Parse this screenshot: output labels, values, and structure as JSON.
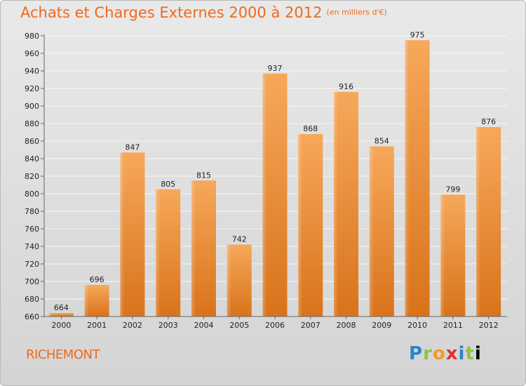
{
  "header": {
    "title": "Achats et Charges Externes 2000 à 2012",
    "subtitle": "(en milliers d'€)"
  },
  "footer": {
    "location": "RICHEMONT",
    "brand_letters": [
      "P",
      "r",
      "o",
      "x",
      "i",
      "t",
      "i"
    ]
  },
  "colors": {
    "bar_top": "#f6a85a",
    "bar_bottom": "#d9731b",
    "accent": "#ee6a1d"
  },
  "chart_data": {
    "type": "bar",
    "categories": [
      "2000",
      "2001",
      "2002",
      "2003",
      "2004",
      "2005",
      "2006",
      "2007",
      "2008",
      "2009",
      "2010",
      "2011",
      "2012"
    ],
    "values": [
      664,
      696,
      847,
      805,
      815,
      742,
      937,
      868,
      916,
      854,
      975,
      799,
      876
    ],
    "ylim": [
      660,
      980
    ],
    "yticks": [
      660,
      680,
      700,
      720,
      740,
      760,
      780,
      800,
      820,
      840,
      860,
      880,
      900,
      920,
      940,
      960,
      980
    ],
    "grid": true,
    "show_value_labels": true
  }
}
